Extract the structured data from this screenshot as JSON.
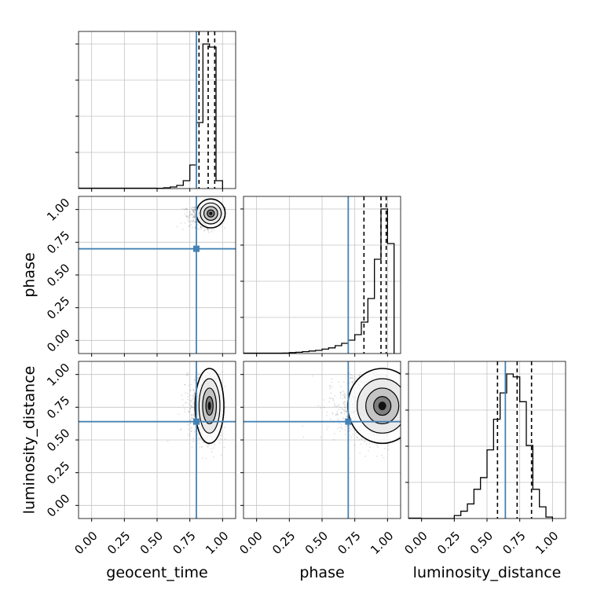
{
  "chart_data": {
    "type": "corner",
    "parameters": [
      "geocent_time",
      "phase",
      "luminosity_distance"
    ],
    "axis_range": [
      -0.1,
      1.1
    ],
    "tick_values": [
      0.0,
      0.25,
      0.5,
      0.75,
      1.0
    ],
    "tick_labels": [
      "0.00",
      "0.25",
      "0.50",
      "0.75",
      "1.00"
    ],
    "truths": {
      "geocent_time": 0.8,
      "phase": 0.7,
      "luminosity_distance": 0.64
    },
    "truth_color": "#4682b4",
    "grid": true,
    "histograms": [
      {
        "parameter": "geocent_time",
        "bin_edges": [
          0.5,
          0.55,
          0.6,
          0.65,
          0.7,
          0.75,
          0.8,
          0.85,
          0.9,
          0.95,
          1.0
        ],
        "counts": [
          0.002,
          0.005,
          0.01,
          0.02,
          0.05,
          0.15,
          0.42,
          0.92,
          0.9,
          0.05
        ],
        "quantiles": [
          0.82,
          0.89,
          0.94
        ]
      },
      {
        "parameter": "phase",
        "bin_edges": [
          0.2,
          0.25,
          0.3,
          0.35,
          0.4,
          0.45,
          0.5,
          0.55,
          0.6,
          0.65,
          0.7,
          0.75,
          0.8,
          0.85,
          0.9,
          0.95,
          1.0,
          1.05
        ],
        "counts": [
          0.003,
          0.006,
          0.008,
          0.012,
          0.016,
          0.02,
          0.028,
          0.036,
          0.05,
          0.065,
          0.085,
          0.12,
          0.2,
          0.35,
          0.6,
          0.92,
          0.7
        ],
        "quantiles": [
          0.82,
          0.95,
          0.99
        ]
      },
      {
        "parameter": "luminosity_distance",
        "bin_edges": [
          0.0,
          0.05,
          0.1,
          0.15,
          0.2,
          0.25,
          0.3,
          0.35,
          0.4,
          0.45,
          0.5,
          0.55,
          0.6,
          0.65,
          0.7,
          0.75,
          0.8,
          0.85,
          0.9,
          0.95,
          1.0
        ],
        "counts": [
          0.0,
          0.0,
          0.0,
          0.0,
          0.0,
          0.02,
          0.05,
          0.1,
          0.2,
          0.28,
          0.47,
          0.68,
          0.86,
          0.99,
          0.97,
          0.8,
          0.5,
          0.2,
          0.08,
          0.01
        ],
        "quantiles": [
          0.58,
          0.73,
          0.84
        ]
      }
    ],
    "densities": [
      {
        "x": "geocent_time",
        "y": "phase",
        "x_mean": 0.91,
        "y_mean": 0.97,
        "x_sd": 0.05,
        "y_sd": 0.05,
        "rho": 0.15,
        "n_points": 1500
      },
      {
        "x": "geocent_time",
        "y": "luminosity_distance",
        "x_mean": 0.9,
        "y_mean": 0.76,
        "x_sd": 0.05,
        "y_sd": 0.13,
        "rho": 0.05,
        "n_points": 1500
      },
      {
        "x": "phase",
        "y": "luminosity_distance",
        "x_mean": 0.96,
        "y_mean": 0.76,
        "x_sd": 0.12,
        "y_sd": 0.13,
        "rho": 0.1,
        "n_points": 1500
      }
    ]
  }
}
